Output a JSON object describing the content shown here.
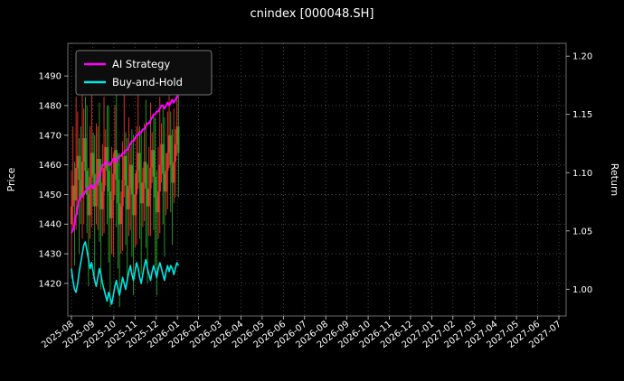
{
  "window": {
    "title": "cnindex [000048.SH]"
  },
  "chart_data": {
    "type": "candlestick_with_lines",
    "title": "cnindex [000048.SH]",
    "ylabel_left": "Price",
    "ylabel_right": "Return",
    "x_tick_labels": [
      "2025-08",
      "2025-09",
      "2025-10",
      "2025-11",
      "2025-12",
      "2026-01",
      "2026-02",
      "2026-03",
      "2026-04",
      "2026-05",
      "2026-06",
      "2026-07",
      "2026-08",
      "2026-09",
      "2026-10",
      "2026-11",
      "2026-12",
      "2027-01",
      "2027-02",
      "2027-03",
      "2027-04",
      "2027-05",
      "2027-06",
      "2027-07"
    ],
    "ylim_left": [
      1409,
      1501
    ],
    "yticks_left": [
      1420,
      1430,
      1440,
      1450,
      1460,
      1470,
      1480,
      1490
    ],
    "ylim_right": [
      0.977,
      1.211
    ],
    "yticks_right_values": [
      1.0,
      1.05,
      1.1,
      1.15,
      1.2
    ],
    "yticks_right_labels": [
      "1.00",
      "1.05",
      "1.10",
      "1.15",
      "1.20"
    ],
    "legend": [
      {
        "label": "AI Strategy",
        "color": "#ff00ff"
      },
      {
        "label": "Buy-and-Hold",
        "color": "#00e5e5"
      }
    ],
    "colors": {
      "background": "#000000",
      "text": "#ffffff",
      "grid": "#555555",
      "spine": "#888888",
      "up": "#e8382f",
      "down": "#27a327",
      "ai": "#ff00ff",
      "bh": "#00e5e5"
    },
    "x_range_months": {
      "start": 0,
      "end": 5.05
    },
    "candles": {
      "open": [
        1440,
        1446,
        1453,
        1448,
        1459,
        1463,
        1455,
        1449,
        1461,
        1469,
        1458,
        1450,
        1443,
        1456,
        1464,
        1457,
        1446,
        1453,
        1462,
        1454,
        1445,
        1451,
        1459,
        1466,
        1458,
        1451,
        1442,
        1448,
        1457,
        1465,
        1455,
        1447,
        1440,
        1446,
        1455,
        1463,
        1453,
        1445,
        1452,
        1460,
        1450,
        1443,
        1450,
        1458,
        1464,
        1454,
        1447,
        1454,
        1461,
        1452,
        1446,
        1452,
        1459,
        1465,
        1456,
        1449,
        1444,
        1451,
        1460,
        1467,
        1457,
        1451,
        1458,
        1464,
        1470,
        1460,
        1454,
        1461,
        1467,
        1473
      ],
      "high": [
        1458,
        1473,
        1461,
        1483,
        1478,
        1469,
        1473,
        1487,
        1479,
        1483,
        1480,
        1459,
        1473,
        1489,
        1471,
        1470,
        1474,
        1473,
        1481,
        1462,
        1467,
        1483,
        1472,
        1480,
        1480,
        1461,
        1466,
        1464,
        1480,
        1488,
        1464,
        1464,
        1451,
        1468,
        1484,
        1471,
        1469,
        1476,
        1466,
        1472,
        1470,
        1457,
        1473,
        1487,
        1473,
        1471,
        1459,
        1474,
        1482,
        1460,
        1466,
        1481,
        1471,
        1477,
        1476,
        1458,
        1466,
        1483,
        1474,
        1480,
        1476,
        1464,
        1478,
        1490,
        1478,
        1472,
        1479,
        1472,
        1484,
        1489
      ],
      "low": [
        1422,
        1439,
        1426,
        1438,
        1443,
        1430,
        1440,
        1435,
        1440,
        1452,
        1437,
        1419,
        1435,
        1439,
        1446,
        1423,
        1440,
        1438,
        1434,
        1418,
        1436,
        1437,
        1453,
        1440,
        1427,
        1412,
        1430,
        1429,
        1450,
        1439,
        1425,
        1412,
        1430,
        1431,
        1449,
        1433,
        1420,
        1436,
        1438,
        1429,
        1416,
        1432,
        1433,
        1452,
        1435,
        1423,
        1439,
        1441,
        1432,
        1420,
        1436,
        1436,
        1454,
        1438,
        1426,
        1416,
        1435,
        1437,
        1454,
        1440,
        1429,
        1443,
        1445,
        1459,
        1444,
        1433,
        1447,
        1449,
        1463,
        1449
      ],
      "close": [
        1446,
        1453,
        1448,
        1459,
        1463,
        1455,
        1449,
        1461,
        1469,
        1458,
        1450,
        1443,
        1456,
        1464,
        1457,
        1446,
        1453,
        1462,
        1454,
        1445,
        1451,
        1459,
        1466,
        1458,
        1451,
        1442,
        1448,
        1457,
        1465,
        1455,
        1447,
        1440,
        1446,
        1455,
        1463,
        1453,
        1445,
        1452,
        1460,
        1450,
        1443,
        1450,
        1458,
        1464,
        1454,
        1447,
        1454,
        1461,
        1452,
        1446,
        1452,
        1459,
        1465,
        1456,
        1449,
        1444,
        1451,
        1460,
        1467,
        1457,
        1451,
        1458,
        1464,
        1470,
        1460,
        1454,
        1461,
        1467,
        1473,
        1464
      ]
    },
    "ai_strategy_price": [
      1437,
      1438,
      1440,
      1443,
      1446,
      1448,
      1449,
      1450,
      1450,
      1451,
      1452,
      1452,
      1453,
      1453,
      1452,
      1453,
      1454,
      1455,
      1456,
      1458,
      1460,
      1460,
      1461,
      1461,
      1460,
      1460,
      1461,
      1462,
      1462,
      1461,
      1462,
      1463,
      1463,
      1464,
      1464,
      1465,
      1465,
      1466,
      1467,
      1468,
      1468,
      1469,
      1470,
      1470,
      1471,
      1471,
      1472,
      1472,
      1473,
      1474,
      1474,
      1475,
      1476,
      1477,
      1477,
      1478,
      1478,
      1479,
      1480,
      1480,
      1479,
      1480,
      1481,
      1480,
      1481,
      1482,
      1481,
      1482,
      1483,
      1483
    ],
    "buy_hold_price": [
      1425,
      1421,
      1418,
      1417,
      1420,
      1424,
      1427,
      1430,
      1433,
      1434,
      1431,
      1428,
      1425,
      1427,
      1424,
      1421,
      1419,
      1422,
      1425,
      1423,
      1420,
      1418,
      1416,
      1414,
      1417,
      1415,
      1413,
      1416,
      1419,
      1421,
      1418,
      1416,
      1419,
      1422,
      1420,
      1418,
      1421,
      1424,
      1426,
      1423,
      1421,
      1424,
      1427,
      1425,
      1422,
      1420,
      1423,
      1426,
      1428,
      1425,
      1423,
      1421,
      1424,
      1426,
      1424,
      1422,
      1425,
      1427,
      1425,
      1423,
      1421,
      1424,
      1426,
      1424,
      1426,
      1425,
      1423,
      1425,
      1427,
      1426
    ]
  }
}
